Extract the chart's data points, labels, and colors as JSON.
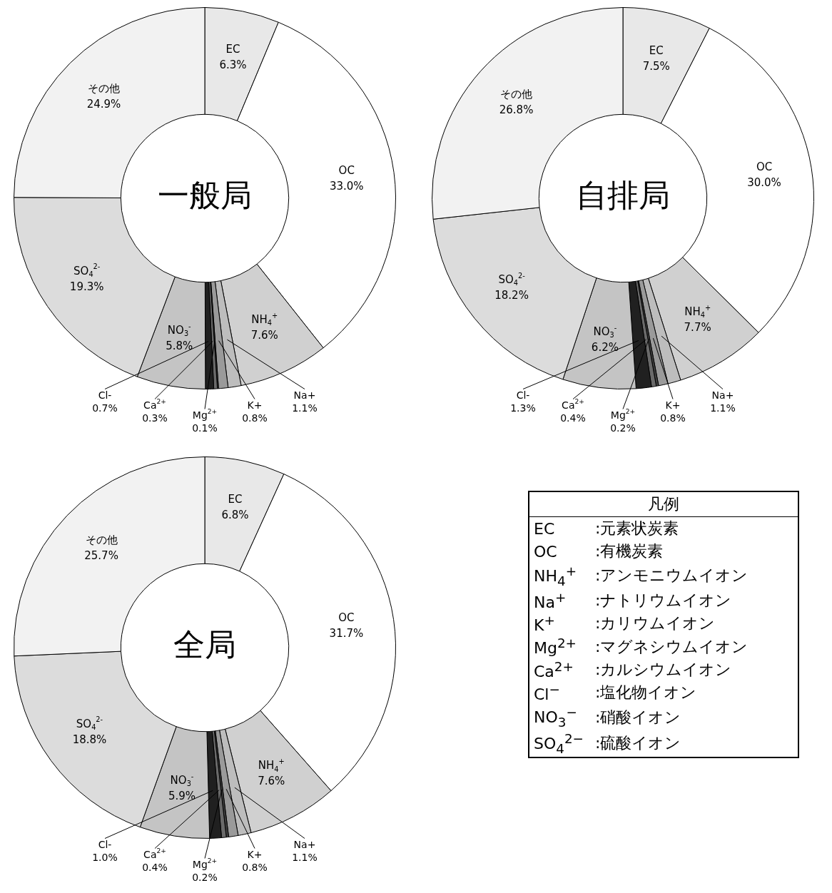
{
  "chart_data": [
    {
      "type": "donut",
      "title": "一般局",
      "categories": [
        "EC",
        "OC",
        "NH$_{4}$$^{+}$",
        "Na+",
        "K+",
        "Mg$^{2+}$",
        "Ca$^{2+}$",
        "Cl-",
        "NO$_{3}$$^{-}$",
        "SO$_{4}$$^{2-}$",
        "その他"
      ],
      "values": [
        6.3,
        33.0,
        7.6,
        1.1,
        0.8,
        0.1,
        0.3,
        0.7,
        5.8,
        19.3,
        24.9
      ],
      "value_labels": [
        "6.3%",
        "33.0%",
        "7.6%",
        "1.1%",
        "0.8%",
        "0.1%",
        "0.3%",
        "0.7%",
        "5.8%",
        "19.3%",
        "24.9%"
      ],
      "colors": [
        "#e8e8e8",
        "#ffffff",
        "#d0d0d0",
        "#bdbdbd",
        "#9a9a9a",
        "#404040",
        "#6a6a6a",
        "#202020",
        "#c4c4c4",
        "#dcdcdc",
        "#f2f2f2"
      ],
      "legend": false
    },
    {
      "type": "donut",
      "title": "自排局",
      "categories": [
        "EC",
        "OC",
        "NH$_{4}$$^{+}$",
        "Na+",
        "K+",
        "Mg$^{2+}$",
        "Ca$^{2+}$",
        "Cl-",
        "NO$_{3}$$^{-}$",
        "SO$_{4}$$^{2-}$",
        "その他"
      ],
      "values": [
        7.5,
        30.0,
        7.7,
        1.1,
        0.8,
        0.2,
        0.4,
        1.3,
        6.2,
        18.2,
        26.8
      ],
      "value_labels": [
        "7.5%",
        "30.0%",
        "7.7%",
        "1.1%",
        "0.8%",
        "0.2%",
        "0.4%",
        "1.3%",
        "6.2%",
        "18.2%",
        "26.8%"
      ],
      "colors": [
        "#e8e8e8",
        "#ffffff",
        "#d0d0d0",
        "#bdbdbd",
        "#9a9a9a",
        "#404040",
        "#6a6a6a",
        "#202020",
        "#c4c4c4",
        "#dcdcdc",
        "#f2f2f2"
      ],
      "legend": false
    },
    {
      "type": "donut",
      "title": "全局",
      "categories": [
        "EC",
        "OC",
        "NH$_{4}$$^{+}$",
        "Na+",
        "K+",
        "Mg$^{2+}$",
        "Ca$^{2+}$",
        "Cl-",
        "NO$_{3}$$^{-}$",
        "SO$_{4}$$^{2-}$",
        "その他"
      ],
      "values": [
        6.8,
        31.7,
        7.6,
        1.1,
        0.8,
        0.2,
        0.4,
        1.0,
        5.9,
        18.8,
        25.7
      ],
      "value_labels": [
        "6.8%",
        "31.7%",
        "7.6%",
        "1.1%",
        "0.8%",
        "0.2%",
        "0.4%",
        "1.0%",
        "5.9%",
        "18.8%",
        "25.7%"
      ],
      "colors": [
        "#e8e8e8",
        "#ffffff",
        "#d0d0d0",
        "#bdbdbd",
        "#9a9a9a",
        "#404040",
        "#6a6a6a",
        "#202020",
        "#c4c4c4",
        "#dcdcdc",
        "#f2f2f2"
      ],
      "legend": false
    },
    {
      "type": "other",
      "title": "凡例",
      "categories": [
        "EC",
        "OC",
        "NH$_{4}$$^{+}$",
        "Na$^{+}$",
        "K$^{+}$",
        "Mg$^{2+}$",
        "Ca$^{2+}$",
        "Cl$^{−}$",
        "NO$_{3}$$^{−}$",
        "SO$_{4}$$^{2−}$"
      ],
      "annotations": [
        ":元素状炭素",
        ":有機炭素",
        ":アンモニウムイオン",
        ":ナトリウムイオン",
        ":カリウムイオン",
        ":マグネシウムイオン",
        ":カルシウムイオン",
        ":塩化物イオン",
        ":硝酸イオン",
        ":硫酸イオン"
      ]
    }
  ]
}
